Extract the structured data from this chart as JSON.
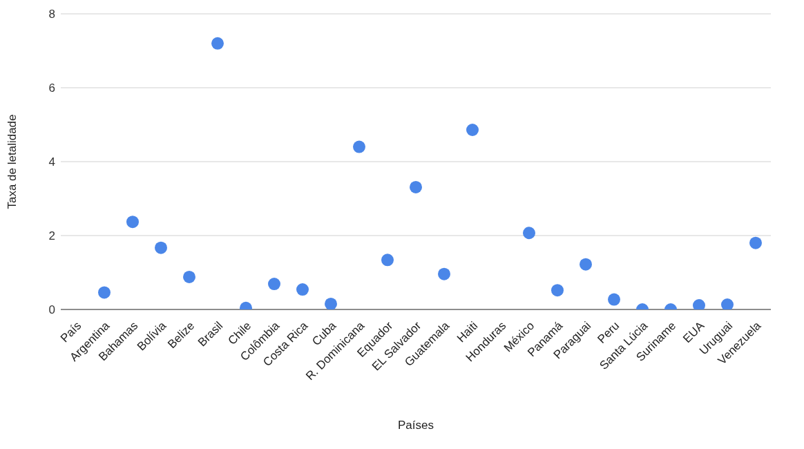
{
  "chart_data": {
    "type": "scatter",
    "xlabel": "Países",
    "ylabel": "Taxa de letalidade",
    "categories": [
      "País",
      "Argentina",
      "Bahamas",
      "Bolívia",
      "Belize",
      "Brasil",
      "Chile",
      "Colômbia",
      "Costa Rica",
      "Cuba",
      "R. Dominicana",
      "Equador",
      "EL Salvador",
      "Guatemala",
      "Haiti",
      "Honduras",
      "México",
      "Panamá",
      "Paraguai",
      "Peru",
      "Santa Lúcia",
      "Suriname",
      "EUA",
      "Uruguai",
      "Venezuela"
    ],
    "series": [
      {
        "color": "#4a86e8",
        "values": [
          null,
          0.46,
          2.37,
          1.67,
          0.88,
          7.2,
          0.04,
          0.69,
          0.54,
          0.15,
          4.4,
          1.34,
          3.31,
          0.96,
          4.86,
          null,
          2.07,
          0.52,
          1.22,
          0.27,
          0.0,
          0.0,
          0.11,
          0.13,
          1.8
        ]
      }
    ],
    "ylim": [
      0,
      8
    ],
    "yticks": [
      0,
      2,
      4,
      6,
      8
    ],
    "grid": "y",
    "marker": "circle",
    "legend": false
  }
}
